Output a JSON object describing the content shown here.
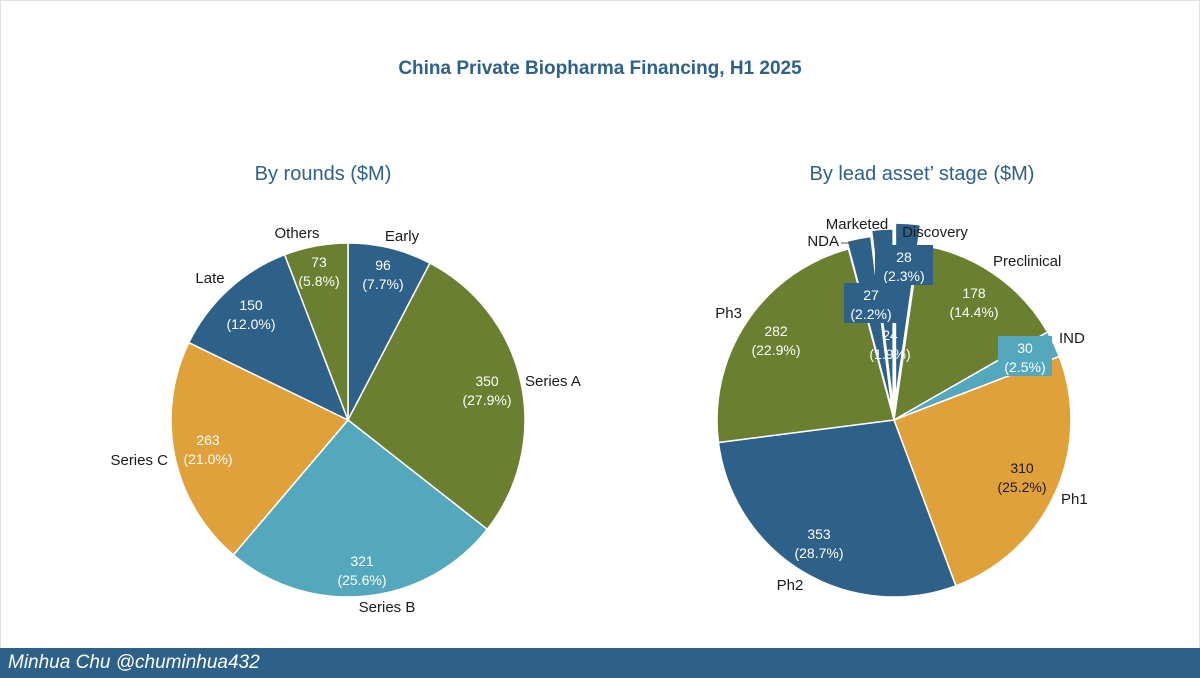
{
  "title": "China Private Biopharma Financing, H1 2025",
  "footer": {
    "credit": "Minhua Chu @chuminhua432"
  },
  "chart_data": [
    {
      "type": "pie",
      "title": "By rounds ($M)",
      "categories": [
        "Early",
        "Series A",
        "Series B",
        "Series C",
        "Late",
        "Others"
      ],
      "values": [
        96,
        350,
        321,
        263,
        150,
        73
      ],
      "percent_labels": [
        "7.7%",
        "27.9%",
        "25.6%",
        "21.0%",
        "12.0%",
        "5.8%"
      ],
      "colors": [
        "#2e6189",
        "#6b7f30",
        "#54a8bd",
        "#e0a03a",
        "#2e6189",
        "#6b7f30"
      ]
    },
    {
      "type": "pie",
      "title": "By lead asset’ stage ($M)",
      "categories": [
        "Discovery",
        "Preclinical",
        "IND",
        "Ph1",
        "Ph2",
        "Ph3",
        "NDA",
        "Marketed"
      ],
      "values": [
        28,
        178,
        30,
        310,
        353,
        282,
        27,
        24
      ],
      "percent_labels": [
        "2.3%",
        "14.4%",
        "2.5%",
        "25.2%",
        "28.7%",
        "22.9%",
        "2.2%",
        "1.9%"
      ],
      "colors": [
        "#2e6189",
        "#6b7f30",
        "#54a8bd",
        "#e0a03a",
        "#2e6189",
        "#6b7f30",
        "#2e6189",
        "#2e6189"
      ]
    }
  ]
}
